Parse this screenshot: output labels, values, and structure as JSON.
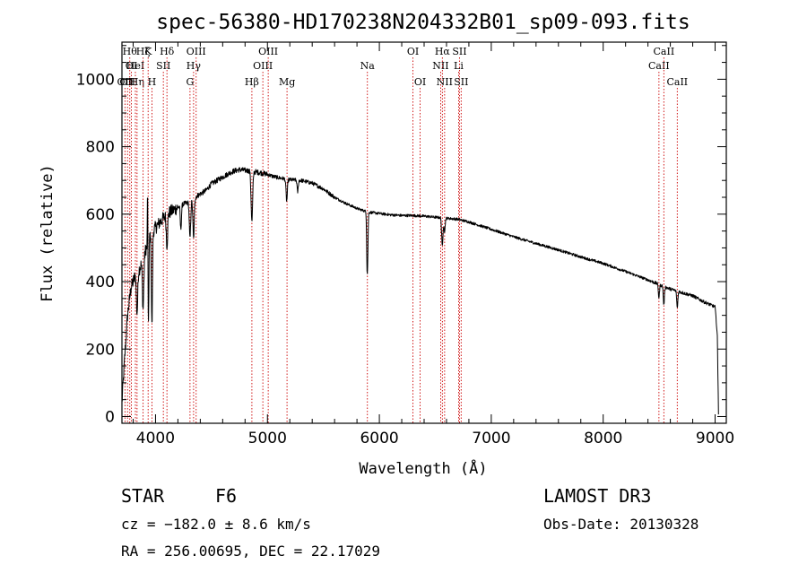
{
  "chart_data": {
    "type": "line",
    "title": "spec-56380-HD170238N204332B01_sp09-093.fits",
    "xlabel": "Wavelength (Å)",
    "ylabel": "Flux (relative)",
    "xlim": [
      3700,
      9100
    ],
    "ylim": [
      -20,
      1110
    ],
    "xticks": [
      4000,
      5000,
      6000,
      7000,
      8000,
      9000
    ],
    "yticks": [
      0,
      200,
      400,
      600,
      800,
      1000
    ],
    "continuum": [
      [
        3700,
        40
      ],
      [
        3720,
        150
      ],
      [
        3750,
        300
      ],
      [
        3780,
        380
      ],
      [
        3820,
        420
      ],
      [
        3860,
        440
      ],
      [
        3900,
        480
      ],
      [
        3950,
        540
      ],
      [
        4000,
        560
      ],
      [
        4050,
        580
      ],
      [
        4100,
        600
      ],
      [
        4150,
        610
      ],
      [
        4200,
        620
      ],
      [
        4250,
        630
      ],
      [
        4300,
        635
      ],
      [
        4350,
        650
      ],
      [
        4400,
        660
      ],
      [
        4450,
        670
      ],
      [
        4500,
        690
      ],
      [
        4550,
        700
      ],
      [
        4600,
        710
      ],
      [
        4650,
        720
      ],
      [
        4700,
        728
      ],
      [
        4750,
        732
      ],
      [
        4800,
        730
      ],
      [
        4850,
        728
      ],
      [
        4900,
        725
      ],
      [
        4950,
        722
      ],
      [
        5000,
        718
      ],
      [
        5050,
        712
      ],
      [
        5100,
        708
      ],
      [
        5150,
        705
      ],
      [
        5200,
        702
      ],
      [
        5300,
        700
      ],
      [
        5400,
        692
      ],
      [
        5500,
        675
      ],
      [
        5600,
        650
      ],
      [
        5700,
        632
      ],
      [
        5800,
        617
      ],
      [
        5900,
        606
      ],
      [
        6000,
        602
      ],
      [
        6100,
        598
      ],
      [
        6200,
        596
      ],
      [
        6300,
        596
      ],
      [
        6400,
        594
      ],
      [
        6500,
        591
      ],
      [
        6600,
        588
      ],
      [
        6700,
        585
      ],
      [
        6800,
        577
      ],
      [
        6900,
        566
      ],
      [
        7000,
        555
      ],
      [
        7200,
        533
      ],
      [
        7400,
        513
      ],
      [
        7600,
        494
      ],
      [
        7800,
        473
      ],
      [
        8000,
        454
      ],
      [
        8200,
        430
      ],
      [
        8400,
        405
      ],
      [
        8600,
        378
      ],
      [
        8800,
        358
      ],
      [
        8900,
        340
      ],
      [
        9000,
        325
      ],
      [
        9020,
        240
      ],
      [
        9030,
        10
      ]
    ],
    "absorption": [
      {
        "wl": 3835,
        "depth": 120,
        "width": 6
      },
      {
        "wl": 3889,
        "depth": 150,
        "width": 6
      },
      {
        "wl": 3934,
        "depth": 330,
        "width": 5
      },
      {
        "wl": 3968,
        "depth": 280,
        "width": 5
      },
      {
        "wl": 4102,
        "depth": 90,
        "width": 6
      },
      {
        "wl": 4226,
        "depth": 70,
        "width": 5
      },
      {
        "wl": 4308,
        "depth": 110,
        "width": 6
      },
      {
        "wl": 4340,
        "depth": 120,
        "width": 6
      },
      {
        "wl": 4861,
        "depth": 150,
        "width": 7
      },
      {
        "wl": 5172,
        "depth": 65,
        "width": 6
      },
      {
        "wl": 5270,
        "depth": 35,
        "width": 5
      },
      {
        "wl": 5890,
        "depth": 140,
        "width": 4
      },
      {
        "wl": 5896,
        "depth": 100,
        "width": 4
      },
      {
        "wl": 6563,
        "depth": 85,
        "width": 6
      },
      {
        "wl": 6583,
        "depth": 40,
        "width": 5
      },
      {
        "wl": 8498,
        "depth": 40,
        "width": 5
      },
      {
        "wl": 8542,
        "depth": 55,
        "width": 5
      },
      {
        "wl": 8662,
        "depth": 50,
        "width": 5
      }
    ],
    "emission": [
      {
        "wl": 3930,
        "height": 380,
        "width": 3
      }
    ],
    "line_markers": [
      {
        "wl": 3727,
        "label": "OII",
        "row": 3
      },
      {
        "wl": 3750,
        "label": "OII",
        "row": 3
      },
      {
        "wl": 3770,
        "label": "Hθ",
        "row": 1
      },
      {
        "wl": 3784,
        "label": "OI",
        "row": 2
      },
      {
        "wl": 3820,
        "label": "HeI",
        "row": 2
      },
      {
        "wl": 3835,
        "label": "Hη",
        "row": 3
      },
      {
        "wl": 3889,
        "label": "Hζ",
        "row": 1
      },
      {
        "wl": 3934,
        "label": "K",
        "row": 1
      },
      {
        "wl": 3968,
        "label": "H",
        "row": 3
      },
      {
        "wl": 4070,
        "label": "SII",
        "row": 2
      },
      {
        "wl": 4102,
        "label": "Hδ",
        "row": 1
      },
      {
        "wl": 4308,
        "label": "G",
        "row": 3
      },
      {
        "wl": 4340,
        "label": "Hγ",
        "row": 2
      },
      {
        "wl": 4363,
        "label": "OIII",
        "row": 1
      },
      {
        "wl": 4861,
        "label": "Hβ",
        "row": 3
      },
      {
        "wl": 4959,
        "label": "OIII",
        "row": 2
      },
      {
        "wl": 5007,
        "label": "OIII",
        "row": 1
      },
      {
        "wl": 5175,
        "label": "Mg",
        "row": 3
      },
      {
        "wl": 5893,
        "label": "Na",
        "row": 2
      },
      {
        "wl": 6300,
        "label": "OI",
        "row": 1
      },
      {
        "wl": 6364,
        "label": "OI",
        "row": 3
      },
      {
        "wl": 6548,
        "label": "NII",
        "row": 2
      },
      {
        "wl": 6563,
        "label": "Hα",
        "row": 1
      },
      {
        "wl": 6583,
        "label": "NII",
        "row": 3
      },
      {
        "wl": 6708,
        "label": "Li",
        "row": 2
      },
      {
        "wl": 6716,
        "label": "SII",
        "row": 1
      },
      {
        "wl": 6731,
        "label": "SII",
        "row": 3
      },
      {
        "wl": 8498,
        "label": "CaII",
        "row": 2
      },
      {
        "wl": 8542,
        "label": "CaII",
        "row": 1
      },
      {
        "wl": 8662,
        "label": "CaII",
        "row": 3
      }
    ]
  },
  "info": {
    "object_type": "STAR",
    "subclass": "F6",
    "survey": "LAMOST DR3",
    "cz": "cz = −182.0 ± 8.6 km/s",
    "obs_date": "Obs-Date: 20130328",
    "coords": "RA = 256.00695, DEC =  22.17029"
  },
  "colors": {
    "marker": "#cc0000",
    "spectrum": "#000000"
  }
}
